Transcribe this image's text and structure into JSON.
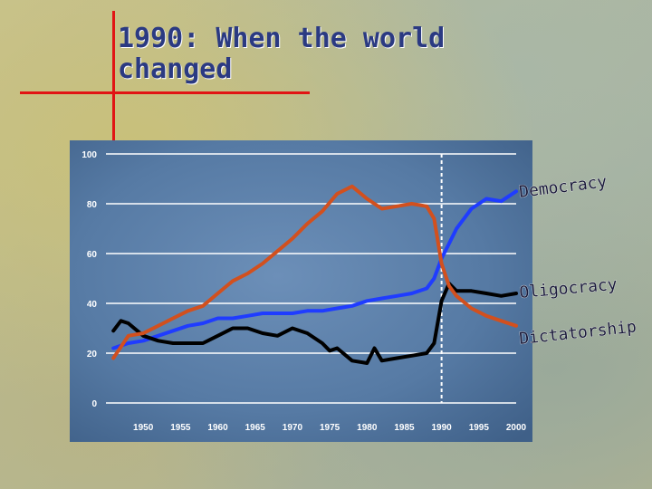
{
  "slide": {
    "title": "1990: When the world\nchanged"
  },
  "colors": {
    "title": "#2b3a82",
    "accent_lines": "#e11414",
    "panel": "#5a7ea8",
    "democracy": "#1f3cff",
    "oligocracy": "#000000",
    "dictatorship": "#d2501e",
    "gridline": "#ffffff"
  },
  "chart_data": {
    "type": "line",
    "xlim": [
      1945,
      2000
    ],
    "ylim": [
      0,
      100
    ],
    "x_ticks": [
      "1950",
      "1955",
      "1960",
      "1965",
      "1970",
      "1975",
      "1980",
      "1985",
      "1990",
      "1995",
      "2000"
    ],
    "y_ticks": [
      "0",
      "20",
      "40",
      "60",
      "80",
      "100"
    ],
    "grid": true,
    "annotations": [
      {
        "type": "dashed-vertical",
        "x": 1990
      }
    ],
    "series": [
      {
        "name": "Democracy",
        "color": "#1f3cff",
        "x": [
          1946,
          1948,
          1950,
          1952,
          1954,
          1956,
          1958,
          1960,
          1962,
          1964,
          1966,
          1968,
          1970,
          1972,
          1974,
          1976,
          1978,
          1980,
          1982,
          1984,
          1986,
          1988,
          1989,
          1990,
          1991,
          1992,
          1994,
          1996,
          1998,
          2000
        ],
        "values": [
          22,
          24,
          25,
          27,
          29,
          31,
          32,
          34,
          34,
          35,
          36,
          36,
          36,
          37,
          37,
          38,
          39,
          41,
          42,
          43,
          44,
          46,
          50,
          58,
          64,
          70,
          78,
          82,
          81,
          85
        ]
      },
      {
        "name": "Oligocracy",
        "color": "#000000",
        "x": [
          1946,
          1947,
          1948,
          1950,
          1952,
          1954,
          1956,
          1958,
          1960,
          1962,
          1964,
          1966,
          1968,
          1970,
          1972,
          1974,
          1975,
          1976,
          1978,
          1980,
          1981,
          1982,
          1984,
          1986,
          1988,
          1989,
          1990,
          1991,
          1992,
          1994,
          1996,
          1998,
          2000
        ],
        "values": [
          29,
          33,
          32,
          27,
          25,
          24,
          24,
          24,
          27,
          30,
          30,
          28,
          27,
          30,
          28,
          24,
          21,
          22,
          17,
          16,
          22,
          17,
          18,
          19,
          20,
          24,
          41,
          48,
          45,
          45,
          44,
          43,
          44
        ]
      },
      {
        "name": "Dictatorship",
        "color": "#d2501e",
        "x": [
          1946,
          1948,
          1950,
          1952,
          1954,
          1956,
          1958,
          1960,
          1962,
          1964,
          1966,
          1968,
          1970,
          1972,
          1974,
          1976,
          1978,
          1980,
          1982,
          1984,
          1986,
          1988,
          1989,
          1990,
          1991,
          1992,
          1994,
          1996,
          1998,
          2000
        ],
        "values": [
          18,
          27,
          28,
          31,
          34,
          37,
          39,
          44,
          49,
          52,
          56,
          61,
          66,
          72,
          77,
          84,
          87,
          82,
          78,
          79,
          80,
          79,
          74,
          56,
          47,
          43,
          38,
          35,
          33,
          31
        ]
      }
    ]
  }
}
